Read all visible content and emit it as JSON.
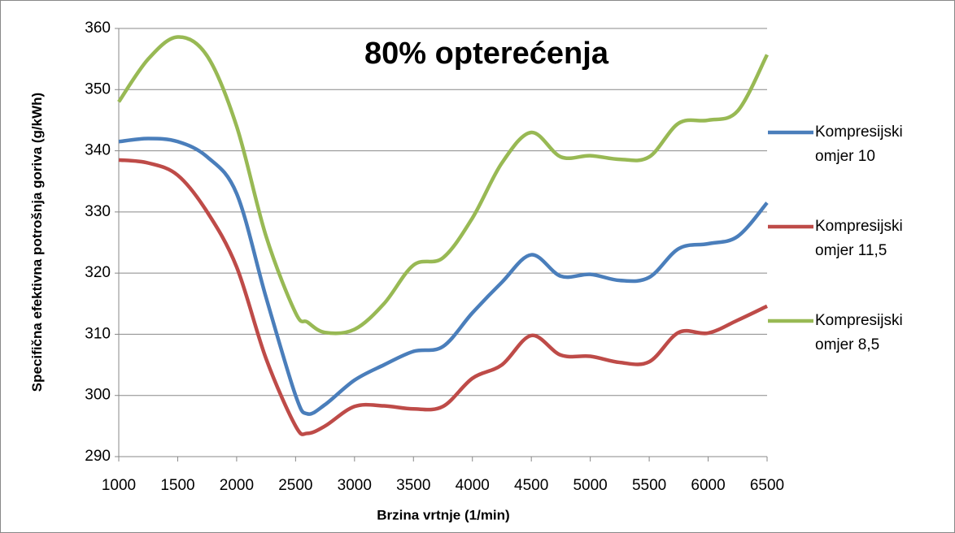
{
  "chart_data": {
    "type": "line",
    "title": "80% opterećenja",
    "x_label": "Brzina vrtnje (1/min)",
    "y_label": "Specifična efektivna potrošnja goriva (g/kWh)",
    "x": [
      1000,
      1250,
      1500,
      1750,
      2000,
      2250,
      2500,
      2600,
      2750,
      3000,
      3250,
      3500,
      3750,
      4000,
      4250,
      4500,
      4750,
      5000,
      5250,
      5500,
      5750,
      6000,
      6250,
      6500
    ],
    "series": [
      {
        "name": "Kompresijski omjer 10",
        "color": "#4a7ebb",
        "values": [
          341.5,
          342,
          341.5,
          339,
          333,
          316,
          300,
          297,
          298.5,
          302.5,
          305,
          307.2,
          308,
          313.5,
          318.5,
          323,
          319.5,
          319.8,
          318.8,
          319.3,
          324,
          324.8,
          326,
          331.5
        ]
      },
      {
        "name": "Kompresijski omjer 11,5",
        "color": "#be4b48",
        "values": [
          338.5,
          338,
          336,
          330,
          321,
          306,
          295,
          293.8,
          295,
          298.2,
          298.3,
          297.8,
          298.2,
          302.8,
          305,
          309.8,
          306.6,
          306.4,
          305.4,
          305.5,
          310.3,
          310.2,
          312.3,
          314.6
        ]
      },
      {
        "name": "Kompresijski omjer 8,5",
        "color": "#98b954",
        "values": [
          348,
          355,
          358.6,
          355.5,
          344,
          326,
          313.5,
          312,
          310.3,
          310.8,
          315,
          321.3,
          322.5,
          329,
          338,
          343,
          339,
          339.2,
          338.6,
          339,
          344.5,
          345,
          346.5,
          355.7
        ]
      }
    ],
    "xlim": [
      1000,
      6500
    ],
    "xticks": [
      1000,
      1500,
      2000,
      2500,
      3000,
      3500,
      4000,
      4500,
      5000,
      5500,
      6000,
      6500
    ],
    "ylim": [
      290,
      360
    ],
    "yticks": [
      290,
      300,
      310,
      320,
      330,
      340,
      350,
      360
    ],
    "grid": true,
    "legend": "right"
  }
}
